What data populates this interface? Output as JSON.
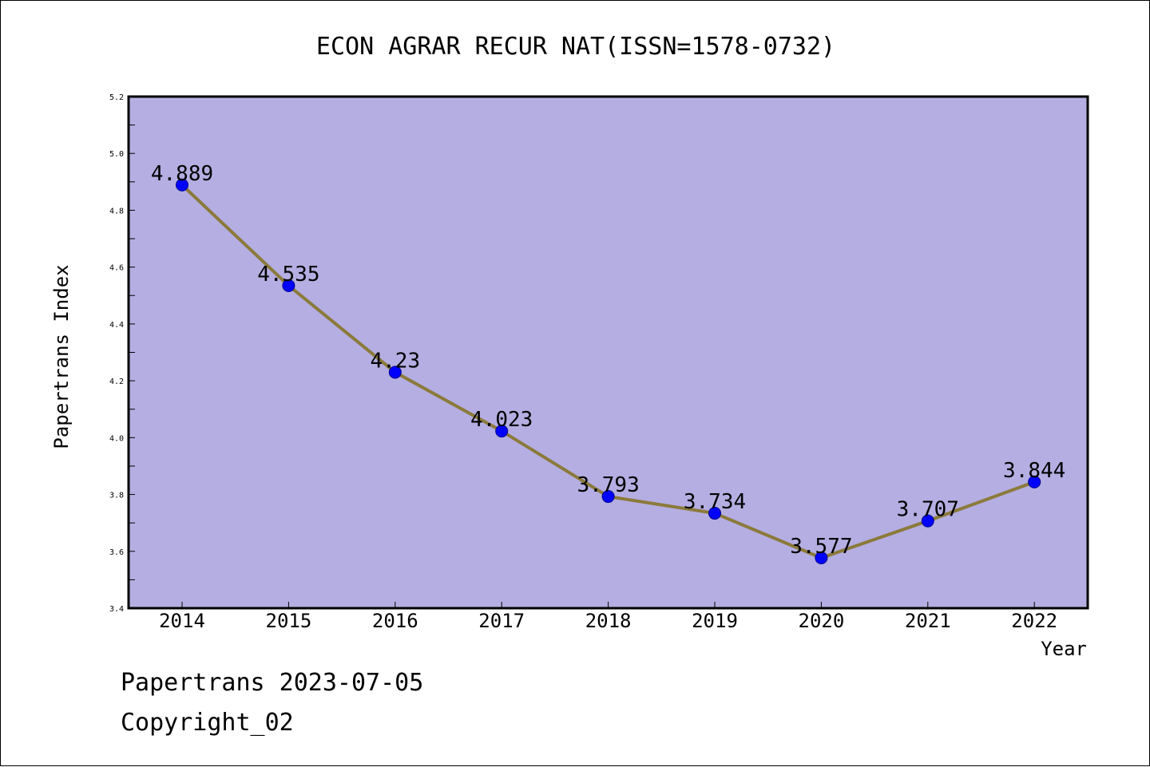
{
  "chart_data": {
    "type": "line",
    "title": "ECON AGRAR RECUR NAT(ISSN=1578-0732)",
    "xlabel": "Year",
    "ylabel": "Papertrans Index",
    "categories": [
      "2014",
      "2015",
      "2016",
      "2017",
      "2018",
      "2019",
      "2020",
      "2021",
      "2022"
    ],
    "series": [
      {
        "values": [
          4.889,
          4.535,
          4.23,
          4.023,
          3.793,
          3.734,
          3.577,
          3.707,
          3.844
        ],
        "labels": [
          "4.889",
          "4.535",
          "4.23",
          "4.023",
          "3.793",
          "3.734",
          "3.577",
          "3.707",
          "3.844"
        ]
      }
    ],
    "ylim": [
      3.4,
      5.2
    ],
    "yticks": [
      "3.4",
      "3.6",
      "3.8",
      "4.0",
      "4.2",
      "4.4",
      "4.6",
      "4.8",
      "5.0",
      "5.2"
    ],
    "grid": false,
    "legend": "none",
    "colors": {
      "plot_background": "#b4aee2",
      "line": "#8b7a3a",
      "marker": "#0000ff"
    }
  },
  "footer": {
    "line1": "Papertrans 2023-07-05",
    "line2": "Copyright_02"
  }
}
